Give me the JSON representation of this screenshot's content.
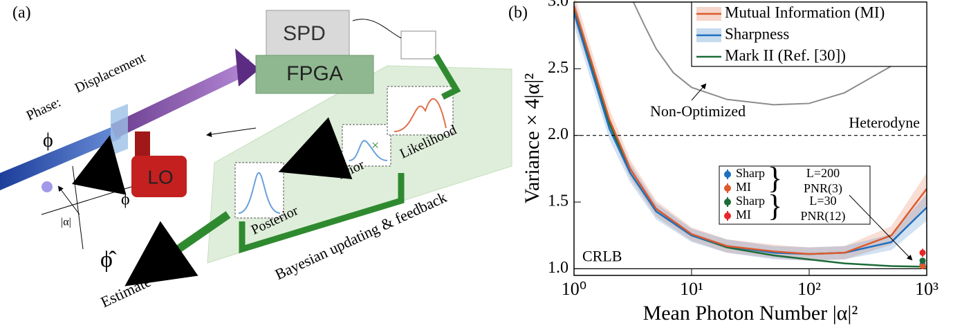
{
  "diagram": {
    "panel_label": "(a)",
    "labels": {
      "spd": "SPD",
      "fpga": "FPGA",
      "lo": "LO",
      "phase": "Phase:",
      "displacement": "Displacement",
      "phase_symbol": "ϕ",
      "amplitude": "|α|",
      "angle": "ϕ",
      "times": "×",
      "prior": "Prior",
      "likelihood": "Likelihood",
      "posterior": "Posterior",
      "feedback": "Bayesian updating & feedback",
      "estimate_symbol": "ϕ̂",
      "estimate": "Estimate"
    }
  },
  "chart_data": {
    "type": "line",
    "panel_label": "(b)",
    "xlabel": "Mean Photon Number |α|²",
    "ylabel": "Variance × 4|α|²",
    "xscale": "log",
    "xlim": [
      1,
      1000
    ],
    "ylim": [
      0.95,
      3.0
    ],
    "xticks": [
      {
        "value": 1,
        "label": "10⁰"
      },
      {
        "value": 10,
        "label": "10¹"
      },
      {
        "value": 100,
        "label": "10²"
      },
      {
        "value": 1000,
        "label": "10³"
      }
    ],
    "yticks": [
      {
        "value": 1,
        "label": "1.0"
      },
      1.5,
      {
        "value": 2,
        "label": "2.0"
      },
      2.5,
      {
        "value": 3,
        "label": "3.0"
      }
    ],
    "x": [
      1,
      2,
      3,
      5,
      10,
      20,
      50,
      100,
      200,
      500,
      1000
    ],
    "series": [
      {
        "name": "Mutual Information (MI)",
        "color": "#dc5a2c",
        "values": [
          2.97,
          2.12,
          1.75,
          1.45,
          1.26,
          1.17,
          1.13,
          1.11,
          1.12,
          1.25,
          1.6
        ],
        "error": [
          0.1,
          0.08,
          0.07,
          0.06,
          0.05,
          0.05,
          0.05,
          0.05,
          0.05,
          0.07,
          0.12
        ]
      },
      {
        "name": "Sharpness",
        "color": "#1f6fbf",
        "values": [
          2.92,
          2.05,
          1.72,
          1.43,
          1.25,
          1.17,
          1.12,
          1.11,
          1.12,
          1.2,
          1.46
        ],
        "error": [
          0.1,
          0.08,
          0.07,
          0.06,
          0.05,
          0.05,
          0.05,
          0.05,
          0.05,
          0.06,
          0.1
        ]
      },
      {
        "name": "Mark II (Ref. [30])",
        "color": "#1c6b38",
        "values": [
          2.95,
          2.09,
          1.72,
          1.43,
          1.25,
          1.16,
          1.1,
          1.07,
          1.04,
          1.02,
          1.015
        ]
      }
    ],
    "reference_curve": {
      "label": "Non-Optimized",
      "color": "#8c8c8c",
      "x": [
        3.2,
        4,
        5,
        7,
        10,
        20,
        50,
        100,
        200,
        500,
        1000
      ],
      "values": [
        3.0,
        2.82,
        2.65,
        2.47,
        2.36,
        2.27,
        2.23,
        2.24,
        2.32,
        2.52,
        2.71
      ]
    },
    "reference_lines": [
      {
        "label": "Heterodyne",
        "value": 2,
        "style": "dashed"
      },
      {
        "label": "CRLB",
        "value": 1,
        "style": "solid"
      }
    ],
    "points": [
      {
        "name": "Sharp",
        "color": "#1f6fbf",
        "x": 1000,
        "value": 1.03,
        "error": 0.02
      },
      {
        "name": "MI",
        "color": "#dc5a2c",
        "x": 1000,
        "value": 1.02,
        "error": 0.02
      },
      {
        "name": "Sharp",
        "color": "#1c6b38",
        "x": 1000,
        "value": 1.06,
        "error": 0.02
      },
      {
        "name": "MI",
        "color": "#e8262a",
        "x": 1000,
        "value": 1.12,
        "error": 0.03
      }
    ],
    "point_groups": [
      [
        "L=200",
        "PNR(3)"
      ],
      [
        "L=30",
        "PNR(12)"
      ]
    ]
  }
}
